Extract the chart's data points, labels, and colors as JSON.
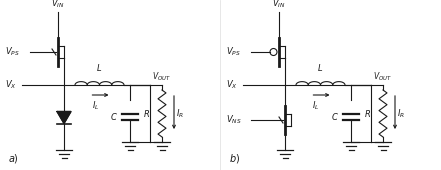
{
  "background_color": "#ffffff",
  "line_color": "#1a1a1a",
  "line_width": 0.8,
  "font_size": 6,
  "fig_width": 4.41,
  "fig_height": 1.7,
  "dpi": 100
}
